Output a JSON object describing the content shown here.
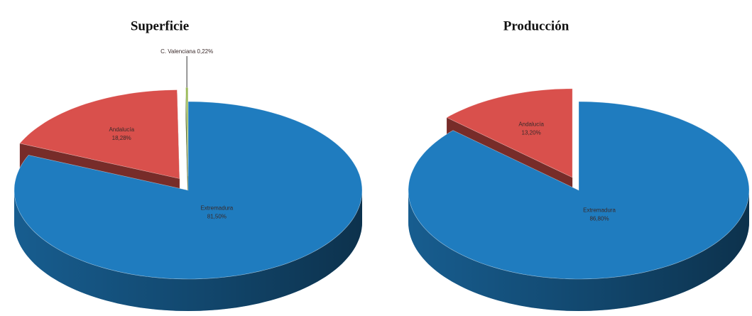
{
  "chart_data": [
    {
      "type": "pie3d",
      "title": "Superficie",
      "categories": [
        "Extremadura",
        "Andalucía",
        "C. Valenciana"
      ],
      "values": [
        81.5,
        18.28,
        0.22
      ],
      "value_labels": [
        "81,50%",
        "18,28%",
        "0,22%"
      ],
      "colors": [
        "#1f7cbf",
        "#d9504c",
        "#9bbb59"
      ]
    },
    {
      "type": "pie3d",
      "title": "Producción",
      "categories": [
        "Extremadura",
        "Andalucía"
      ],
      "values": [
        86.8,
        13.2
      ],
      "value_labels": [
        "86,80%",
        "13,20%"
      ],
      "colors": [
        "#1f7cbf",
        "#d9504c"
      ]
    }
  ]
}
